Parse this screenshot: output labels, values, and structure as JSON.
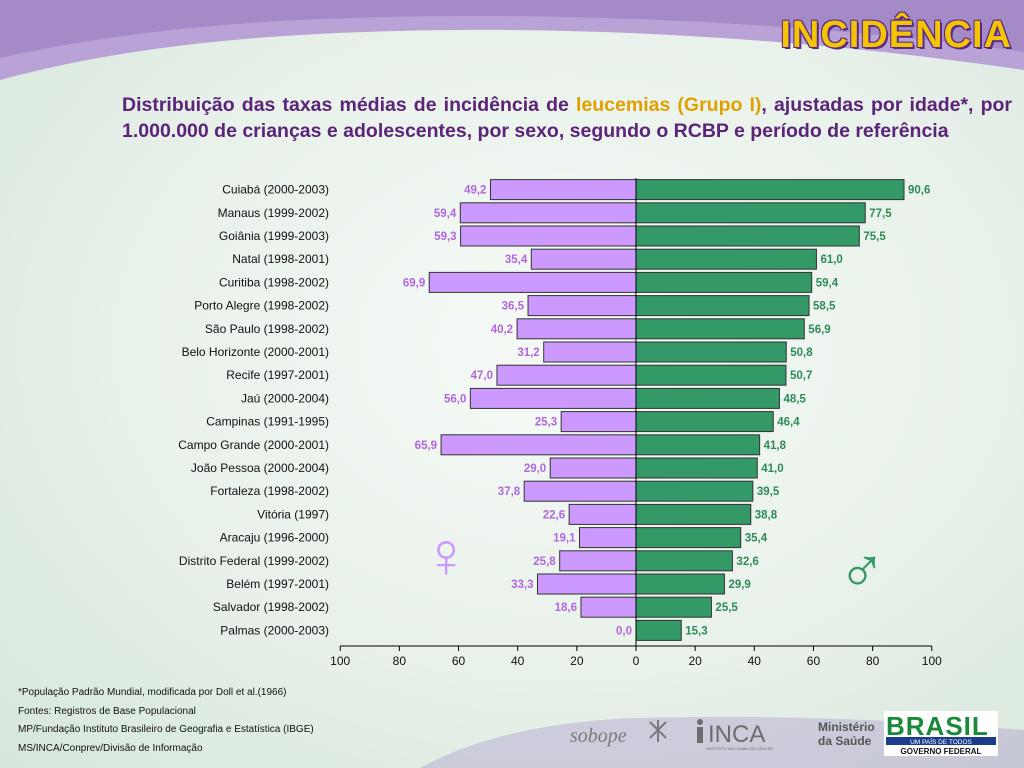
{
  "header": {
    "title": "INCIDÊNCIA",
    "subtitle_pre": "Distribuição das taxas médias de incidência de ",
    "subtitle_highlight": "leucemias (Grupo I)",
    "subtitle_post": ", ajustadas por idade*, por 1.000.000 de crianças e adolescentes, por sexo, segundo o RCBP e período de referência"
  },
  "chart_data": {
    "type": "bar",
    "orientation": "horizontal-back-to-back",
    "categories": [
      "Cuiabá (2000-2003)",
      "Manaus (1999-2002)",
      "Goiânia (1999-2003)",
      "Natal (1998-2001)",
      "Curitiba (1998-2002)",
      "Porto Alegre (1998-2002)",
      "São Paulo (1998-2002)",
      "Belo Horizonte (2000-2001)",
      "Recife (1997-2001)",
      "Jaú (2000-2004)",
      "Campinas (1991-1995)",
      "Campo Grande (2000-2001)",
      "João Pessoa (2000-2004)",
      "Fortaleza (1998-2002)",
      "Vitória (1997)",
      "Aracaju (1996-2000)",
      "Distrito Federal (1999-2002)",
      "Belém (1997-2001)",
      "Salvador (1998-2002)",
      "Palmas (2000-2003)"
    ],
    "series": [
      {
        "values": [
          49.2,
          59.4,
          59.3,
          35.4,
          69.9,
          36.5,
          40.2,
          31.2,
          47.0,
          56.0,
          25.3,
          65.9,
          29.0,
          37.8,
          22.6,
          19.1,
          25.8,
          33.3,
          18.6,
          0.0
        ],
        "labels": [
          "49,2",
          "59,4",
          "59,3",
          "35,4",
          "69,9",
          "36,5",
          "40,2",
          "31,2",
          "47,0",
          "56,0",
          "25,3",
          "65,9",
          "29,0",
          "37,8",
          "22,6",
          "19,1",
          "25,8",
          "33,3",
          "18,6",
          "0,0"
        ],
        "color": "#cc99ff",
        "side": "left"
      },
      {
        "values": [
          90.6,
          77.5,
          75.5,
          61.0,
          59.4,
          58.5,
          56.9,
          50.8,
          50.7,
          48.5,
          46.4,
          41.8,
          41.0,
          39.5,
          38.8,
          35.4,
          32.6,
          29.9,
          25.5,
          15.3
        ],
        "labels": [
          "90,6",
          "77,5",
          "75,5",
          "61,0",
          "59,4",
          "58,5",
          "56,9",
          "50,8",
          "50,7",
          "48,5",
          "46,4",
          "41,8",
          "41,0",
          "39,5",
          "38,8",
          "35,4",
          "32,6",
          "29,9",
          "25,5",
          "15,3"
        ],
        "color": "#339966",
        "side": "right"
      }
    ],
    "xlim": [
      -100,
      100
    ],
    "xticks": [
      "100",
      "80",
      "60",
      "40",
      "20",
      "0",
      "20",
      "40",
      "60",
      "80",
      "100"
    ],
    "female_label_color": "#b266e0",
    "male_label_color": "#2e8b57",
    "female_symbol": "♀",
    "male_symbol": "♂"
  },
  "footnotes": [
    "*População Padrão Mundial, modificada por Doll et al.(1966)",
    "Fontes: Registros de Base Populacional",
    "MP/Fundação Instituto Brasileiro de Geografia e Estatística (IBGE)",
    "MS/INCA/Conprev/Divisão de Informação"
  ],
  "logos": {
    "sobope": "sobope",
    "inca": "INCA",
    "inca_sub": "INSTITUTO NACIONAL DE CÂNCER",
    "ministerio_line1": "Ministério",
    "ministerio_line2": "da Saúde",
    "brasil": "BRASIL",
    "brasil_tag": "UM PAÍS DE TODOS",
    "governo": "GOVERNO FEDERAL"
  },
  "colors": {
    "accent_purple": "#5b2479",
    "title_yellow": "#f5c400",
    "female": "#cc99ff",
    "male": "#339966"
  }
}
